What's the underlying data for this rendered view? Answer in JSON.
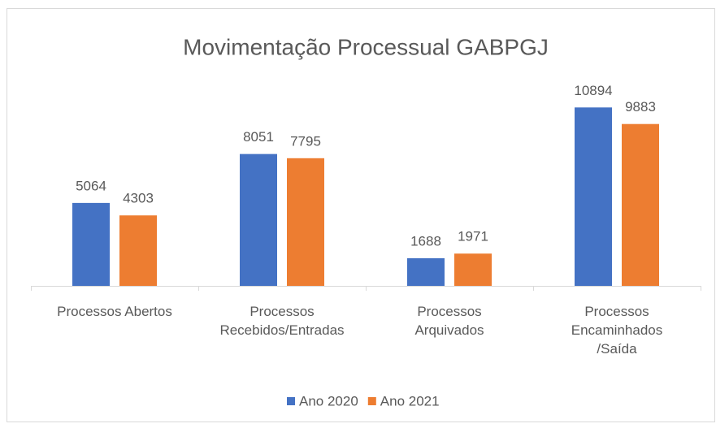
{
  "chart_data": {
    "type": "bar",
    "title": "Movimentação Processual GABPGJ",
    "categories": [
      "Processos Abertos",
      "Processos\nRecebidos/Entradas",
      "Processos\nArquivados",
      "Processos\nEncaminhados\n/Saída"
    ],
    "series": [
      {
        "name": "Ano 2020",
        "color": "#4472c4",
        "values": [
          5064,
          8051,
          1688,
          10894
        ]
      },
      {
        "name": "Ano 2021",
        "color": "#ed7d31",
        "values": [
          4303,
          7795,
          1971,
          9883
        ]
      }
    ],
    "ylim": [
      0,
      12000
    ],
    "legend": "bottom"
  }
}
